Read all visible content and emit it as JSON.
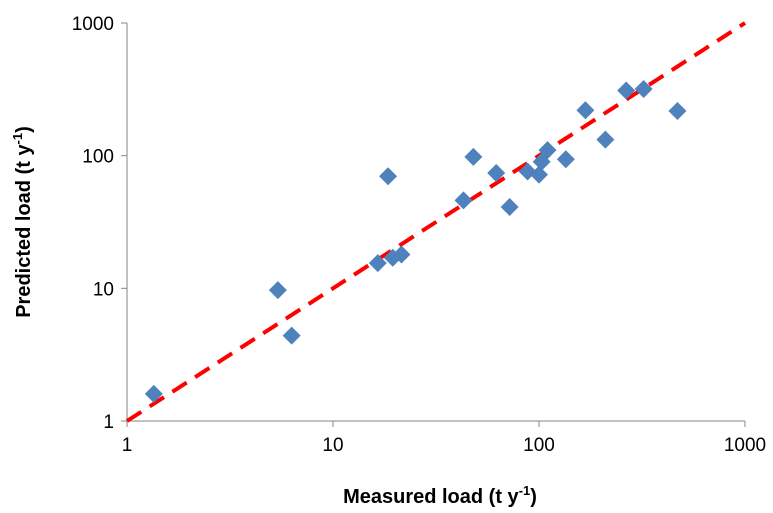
{
  "chart_data": {
    "type": "scatter",
    "xscale": "log",
    "yscale": "log",
    "xlim": [
      1,
      1000
    ],
    "ylim": [
      1,
      1000
    ],
    "xticks": [
      "1",
      "10",
      "100",
      "1000"
    ],
    "yticks": [
      "1",
      "10",
      "100",
      "1000"
    ],
    "xlabel": {
      "text": "Measured load (t y",
      "sup": "-1",
      "close": ")"
    },
    "ylabel": {
      "text": "Predicted load (t y",
      "sup": "-1",
      "close": ")"
    },
    "grid": false,
    "legend": "none",
    "series": [
      {
        "marker": "diamond",
        "color": "#4F81BD",
        "points": [
          {
            "x": 1.35,
            "y": 1.6
          },
          {
            "x": 5.4,
            "y": 9.7
          },
          {
            "x": 6.3,
            "y": 4.4
          },
          {
            "x": 16.5,
            "y": 15.5
          },
          {
            "x": 18.5,
            "y": 70
          },
          {
            "x": 19.5,
            "y": 17
          },
          {
            "x": 21.5,
            "y": 18
          },
          {
            "x": 43,
            "y": 46
          },
          {
            "x": 48,
            "y": 98
          },
          {
            "x": 62,
            "y": 74
          },
          {
            "x": 72,
            "y": 41
          },
          {
            "x": 88,
            "y": 76
          },
          {
            "x": 100,
            "y": 72
          },
          {
            "x": 103,
            "y": 90
          },
          {
            "x": 110,
            "y": 110
          },
          {
            "x": 135,
            "y": 94
          },
          {
            "x": 168,
            "y": 220
          },
          {
            "x": 210,
            "y": 132
          },
          {
            "x": 265,
            "y": 310
          },
          {
            "x": 322,
            "y": 318
          },
          {
            "x": 470,
            "y": 217
          }
        ]
      }
    ],
    "reference_line": {
      "style": "dashed",
      "color": "#FF0000",
      "points": [
        {
          "x": 1,
          "y": 1
        },
        {
          "x": 1000,
          "y": 1000
        }
      ]
    }
  }
}
